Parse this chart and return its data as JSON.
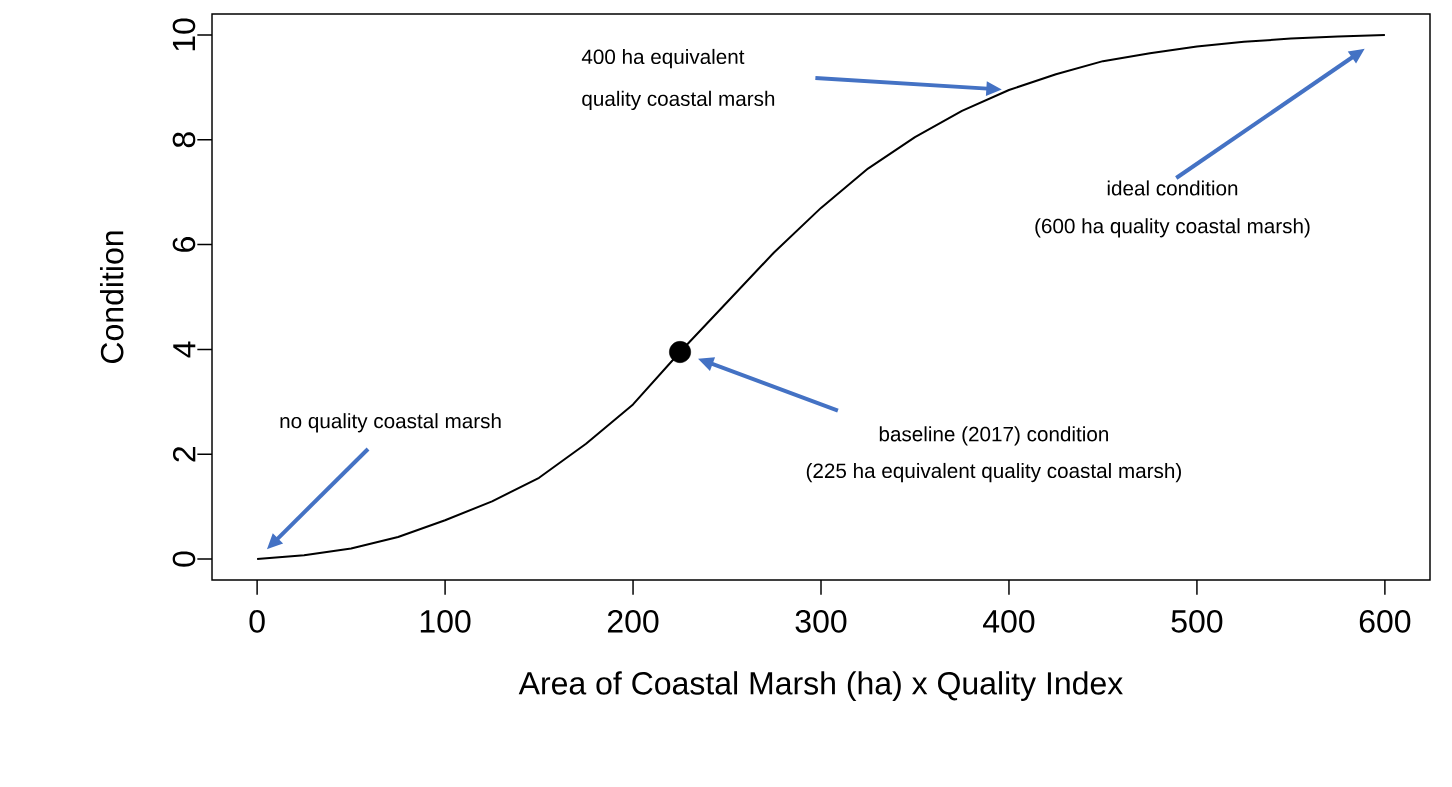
{
  "chart_data": {
    "type": "line",
    "xlabel": "Area of Coastal Marsh (ha) x Quality Index",
    "ylabel": "Condition",
    "xlim": [
      -24,
      624
    ],
    "ylim": [
      -0.4,
      10.4
    ],
    "xticks": [
      0,
      100,
      200,
      300,
      400,
      500,
      600
    ],
    "yticks": [
      0,
      2,
      4,
      6,
      8,
      10
    ],
    "grid": false,
    "series": [
      {
        "color": "#000000",
        "x": [
          0,
          25,
          50,
          75,
          100,
          125,
          150,
          175,
          200,
          225,
          250,
          275,
          300,
          325,
          350,
          375,
          400,
          425,
          450,
          475,
          500,
          525,
          550,
          575,
          600
        ],
        "values": [
          0,
          0.07,
          0.2,
          0.42,
          0.74,
          1.1,
          1.55,
          2.2,
          2.95,
          3.95,
          4.9,
          5.85,
          6.7,
          7.45,
          8.05,
          8.55,
          8.95,
          9.25,
          9.5,
          9.65,
          9.78,
          9.87,
          9.93,
          9.97,
          10
        ]
      },
      {
        "type": "scatter",
        "marker": "circle",
        "color": "#000000",
        "x": [
          225
        ],
        "values": [
          3.95
        ]
      }
    ],
    "annotations": [
      "400 ha equivalent",
      "quality coastal marsh",
      "ideal condition",
      "(600 ha quality coastal marsh)",
      "baseline (2017) condition",
      "(225 ha equivalent quality coastal marsh)",
      "no quality coastal marsh"
    ]
  }
}
